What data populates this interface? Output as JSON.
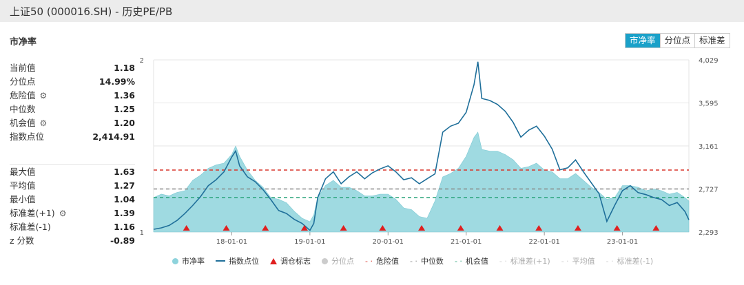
{
  "window_title": "上证50 (000016.SH) - 历史PE/PB",
  "panel_title": "市净率",
  "tabs": [
    "市净率",
    "分位点",
    "标准差"
  ],
  "active_tab": 0,
  "stats_top": [
    {
      "label": "当前值",
      "value": "1.18",
      "gear": false
    },
    {
      "label": "分位点",
      "value": "14.99%",
      "gear": false
    },
    {
      "label": "危险值",
      "value": "1.36",
      "gear": true
    },
    {
      "label": "中位数",
      "value": "1.25",
      "gear": false
    },
    {
      "label": "机会值",
      "value": "1.20",
      "gear": true
    },
    {
      "label": "指数点位",
      "value": "2,414.91",
      "gear": false
    }
  ],
  "stats_bottom": [
    {
      "label": "最大值",
      "value": "1.63",
      "gear": false
    },
    {
      "label": "平均值",
      "value": "1.27",
      "gear": false
    },
    {
      "label": "最小值",
      "value": "1.04",
      "gear": false
    },
    {
      "label": "标准差(+1)",
      "value": "1.39",
      "gear": true
    },
    {
      "label": "标准差(-1)",
      "value": "1.16",
      "gear": false
    },
    {
      "label": "z 分数",
      "value": "-0.89",
      "gear": false
    }
  ],
  "icons": {
    "gear": "gear-icon"
  },
  "colors": {
    "area": "#8ed3dc",
    "index_line": "#1f6f9a",
    "danger": "#d9352b",
    "median": "#888888",
    "opportunity": "#2aa37a",
    "active_tab": "#1aa1c9",
    "marker": "#e01f1f"
  },
  "chart_data": {
    "type": "area",
    "left_axis": {
      "ticks": [
        "2",
        "1"
      ],
      "range": [
        1,
        2
      ]
    },
    "right_axis": {
      "ticks": [
        "4,029",
        "3,595",
        "3,161",
        "2,727",
        "2,293"
      ],
      "range": [
        2293,
        4029
      ]
    },
    "x_ticks": [
      "18-01-01",
      "19-01-01",
      "20-01-01",
      "21-01-01",
      "22-01-01",
      "23-01-01"
    ],
    "x_range": [
      2017.0,
      2023.85
    ],
    "reference_lines": {
      "danger": 1.36,
      "median": 1.25,
      "opportunity": 1.2,
      "sd_plus1": 1.39,
      "mean": 1.27,
      "sd_minus1": 1.16
    },
    "pb_series": [
      [
        2017.0,
        1.2
      ],
      [
        2017.1,
        1.22
      ],
      [
        2017.2,
        1.21
      ],
      [
        2017.3,
        1.23
      ],
      [
        2017.4,
        1.24
      ],
      [
        2017.5,
        1.3
      ],
      [
        2017.6,
        1.33
      ],
      [
        2017.7,
        1.37
      ],
      [
        2017.8,
        1.39
      ],
      [
        2017.9,
        1.4
      ],
      [
        2018.0,
        1.45
      ],
      [
        2018.05,
        1.5
      ],
      [
        2018.1,
        1.44
      ],
      [
        2018.2,
        1.36
      ],
      [
        2018.3,
        1.3
      ],
      [
        2018.4,
        1.26
      ],
      [
        2018.5,
        1.2
      ],
      [
        2018.6,
        1.19
      ],
      [
        2018.7,
        1.17
      ],
      [
        2018.8,
        1.12
      ],
      [
        2018.9,
        1.08
      ],
      [
        2019.0,
        1.06
      ],
      [
        2019.05,
        1.1
      ],
      [
        2019.1,
        1.2
      ],
      [
        2019.2,
        1.27
      ],
      [
        2019.3,
        1.3
      ],
      [
        2019.4,
        1.26
      ],
      [
        2019.5,
        1.26
      ],
      [
        2019.6,
        1.24
      ],
      [
        2019.7,
        1.21
      ],
      [
        2019.8,
        1.21
      ],
      [
        2019.9,
        1.22
      ],
      [
        2020.0,
        1.22
      ],
      [
        2020.1,
        1.19
      ],
      [
        2020.2,
        1.14
      ],
      [
        2020.3,
        1.13
      ],
      [
        2020.4,
        1.09
      ],
      [
        2020.5,
        1.08
      ],
      [
        2020.6,
        1.18
      ],
      [
        2020.7,
        1.32
      ],
      [
        2020.8,
        1.34
      ],
      [
        2020.9,
        1.37
      ],
      [
        2021.0,
        1.44
      ],
      [
        2021.1,
        1.55
      ],
      [
        2021.15,
        1.58
      ],
      [
        2021.2,
        1.48
      ],
      [
        2021.3,
        1.47
      ],
      [
        2021.4,
        1.47
      ],
      [
        2021.5,
        1.45
      ],
      [
        2021.6,
        1.42
      ],
      [
        2021.7,
        1.37
      ],
      [
        2021.8,
        1.38
      ],
      [
        2021.9,
        1.4
      ],
      [
        2022.0,
        1.36
      ],
      [
        2022.1,
        1.35
      ],
      [
        2022.2,
        1.31
      ],
      [
        2022.3,
        1.31
      ],
      [
        2022.4,
        1.34
      ],
      [
        2022.5,
        1.3
      ],
      [
        2022.6,
        1.26
      ],
      [
        2022.7,
        1.23
      ],
      [
        2022.8,
        1.19
      ],
      [
        2022.9,
        1.2
      ],
      [
        2023.0,
        1.27
      ],
      [
        2023.1,
        1.27
      ],
      [
        2023.2,
        1.26
      ],
      [
        2023.3,
        1.24
      ],
      [
        2023.4,
        1.25
      ],
      [
        2023.5,
        1.24
      ],
      [
        2023.6,
        1.22
      ],
      [
        2023.7,
        1.23
      ],
      [
        2023.8,
        1.2
      ],
      [
        2023.85,
        1.18
      ]
    ],
    "index_series": [
      [
        2017.0,
        2320
      ],
      [
        2017.1,
        2335
      ],
      [
        2017.2,
        2360
      ],
      [
        2017.3,
        2410
      ],
      [
        2017.4,
        2480
      ],
      [
        2017.5,
        2560
      ],
      [
        2017.6,
        2650
      ],
      [
        2017.7,
        2760
      ],
      [
        2017.8,
        2820
      ],
      [
        2017.9,
        2900
      ],
      [
        2018.0,
        3050
      ],
      [
        2018.05,
        3110
      ],
      [
        2018.1,
        2960
      ],
      [
        2018.2,
        2850
      ],
      [
        2018.3,
        2800
      ],
      [
        2018.4,
        2720
      ],
      [
        2018.5,
        2620
      ],
      [
        2018.6,
        2510
      ],
      [
        2018.7,
        2480
      ],
      [
        2018.8,
        2420
      ],
      [
        2018.9,
        2380
      ],
      [
        2019.0,
        2310
      ],
      [
        2019.05,
        2380
      ],
      [
        2019.1,
        2640
      ],
      [
        2019.2,
        2830
      ],
      [
        2019.3,
        2900
      ],
      [
        2019.4,
        2780
      ],
      [
        2019.5,
        2850
      ],
      [
        2019.6,
        2900
      ],
      [
        2019.7,
        2830
      ],
      [
        2019.8,
        2890
      ],
      [
        2019.9,
        2930
      ],
      [
        2020.0,
        2960
      ],
      [
        2020.1,
        2900
      ],
      [
        2020.2,
        2820
      ],
      [
        2020.3,
        2840
      ],
      [
        2020.4,
        2780
      ],
      [
        2020.5,
        2830
      ],
      [
        2020.6,
        2880
      ],
      [
        2020.7,
        3300
      ],
      [
        2020.8,
        3360
      ],
      [
        2020.9,
        3390
      ],
      [
        2021.0,
        3500
      ],
      [
        2021.1,
        3780
      ],
      [
        2021.15,
        4010
      ],
      [
        2021.2,
        3640
      ],
      [
        2021.3,
        3620
      ],
      [
        2021.4,
        3580
      ],
      [
        2021.5,
        3510
      ],
      [
        2021.6,
        3400
      ],
      [
        2021.7,
        3250
      ],
      [
        2021.8,
        3320
      ],
      [
        2021.9,
        3360
      ],
      [
        2022.0,
        3260
      ],
      [
        2022.1,
        3130
      ],
      [
        2022.2,
        2920
      ],
      [
        2022.3,
        2940
      ],
      [
        2022.4,
        3020
      ],
      [
        2022.5,
        2900
      ],
      [
        2022.6,
        2790
      ],
      [
        2022.7,
        2680
      ],
      [
        2022.8,
        2400
      ],
      [
        2022.9,
        2560
      ],
      [
        2023.0,
        2710
      ],
      [
        2023.1,
        2760
      ],
      [
        2023.2,
        2690
      ],
      [
        2023.3,
        2670
      ],
      [
        2023.4,
        2640
      ],
      [
        2023.5,
        2620
      ],
      [
        2023.6,
        2560
      ],
      [
        2023.7,
        2590
      ],
      [
        2023.8,
        2500
      ],
      [
        2023.85,
        2415
      ]
    ],
    "markers": [
      2017.42,
      2017.93,
      2018.43,
      2018.93,
      2019.43,
      2019.93,
      2020.43,
      2020.93,
      2021.43,
      2021.93,
      2022.43,
      2022.93,
      2023.43
    ],
    "legend": [
      {
        "label": "市净率",
        "kind": "dot",
        "color": "#8ed3dc",
        "active": true
      },
      {
        "label": "指数点位",
        "kind": "line",
        "color": "#1f6f9a",
        "active": true
      },
      {
        "label": "调仓标志",
        "kind": "triangle",
        "color": "#e01f1f",
        "active": true
      },
      {
        "label": "分位点",
        "kind": "dot",
        "color": "#cccccc",
        "active": false
      },
      {
        "label": "危险值",
        "kind": "dash",
        "color": "#d9352b",
        "active": true
      },
      {
        "label": "中位数",
        "kind": "dash",
        "color": "#888888",
        "active": true
      },
      {
        "label": "机会值",
        "kind": "dash",
        "color": "#2aa37a",
        "active": true
      },
      {
        "label": "标准差(+1)",
        "kind": "dash",
        "color": "#cccccc",
        "active": false
      },
      {
        "label": "平均值",
        "kind": "dash",
        "color": "#cccccc",
        "active": false
      },
      {
        "label": "标准差(-1)",
        "kind": "dash",
        "color": "#cccccc",
        "active": false
      }
    ]
  }
}
